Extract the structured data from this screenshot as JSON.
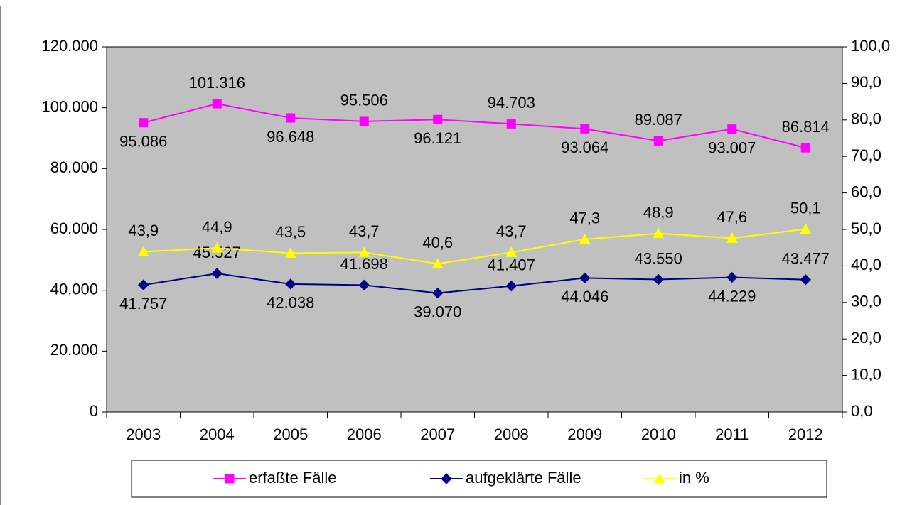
{
  "chart_data": {
    "type": "line",
    "categories": [
      "2003",
      "2004",
      "2005",
      "2006",
      "2007",
      "2008",
      "2009",
      "2010",
      "2011",
      "2012"
    ],
    "series": [
      {
        "name": "erfaßte Fälle",
        "color": "#ff00ff",
        "marker": "square",
        "values": [
          95086,
          101316,
          96648,
          95506,
          96121,
          94703,
          93064,
          89087,
          93007,
          86814
        ],
        "value_labels": [
          "95.086",
          "101.316",
          "96.648",
          "95.506",
          "96.121",
          "94.703",
          "93.064",
          "89.087",
          "93.007",
          "86.814"
        ]
      },
      {
        "name": "aufgeklärte Fälle",
        "color": "#000080",
        "marker": "diamond",
        "values": [
          41757,
          45527,
          42038,
          41698,
          39070,
          41407,
          44046,
          43550,
          44229,
          43477
        ],
        "value_labels": [
          "41.757",
          "45.527",
          "42.038",
          "41.698",
          "39.070",
          "41.407",
          "44.046",
          "43.550",
          "44.229",
          "43.477"
        ]
      },
      {
        "name": "in %",
        "color": "#ffff00",
        "marker": "triangle",
        "axis": "y2",
        "values": [
          43.9,
          44.9,
          43.5,
          43.7,
          40.6,
          43.7,
          47.3,
          48.9,
          47.6,
          50.1
        ],
        "value_labels": [
          "43,9",
          "44,9",
          "43,5",
          "43,7",
          "40,6",
          "43,7",
          "47,3",
          "48,9",
          "47,6",
          "50,1"
        ]
      }
    ],
    "ylim": [
      0,
      120000
    ],
    "yticks": [
      0,
      {
        "value": 20000,
        "label": "20.000"
      },
      {
        "value": 40000,
        "label": "40.000"
      },
      {
        "value": 60000,
        "label": "60.000"
      },
      {
        "value": 80000,
        "label": "80.000"
      },
      {
        "value": 100000,
        "label": "100.000"
      },
      {
        "value": 120000,
        "label": "120.000"
      }
    ],
    "y2lim": [
      0,
      100
    ],
    "y2ticks": [
      {
        "value": 0,
        "label": "0,0"
      },
      {
        "value": 10,
        "label": "10,0"
      },
      {
        "value": 20,
        "label": "20,0"
      },
      {
        "value": 30,
        "label": "30,0"
      },
      {
        "value": 40,
        "label": "40,0"
      },
      {
        "value": 50,
        "label": "50,0"
      },
      {
        "value": 60,
        "label": "60,0"
      },
      {
        "value": 70,
        "label": "70,0"
      },
      {
        "value": 80,
        "label": "80,0"
      },
      {
        "value": 90,
        "label": "90,0"
      },
      {
        "value": 100,
        "label": "100,0"
      }
    ],
    "plot_background": "#c0c0c0",
    "legend": "bottom"
  }
}
